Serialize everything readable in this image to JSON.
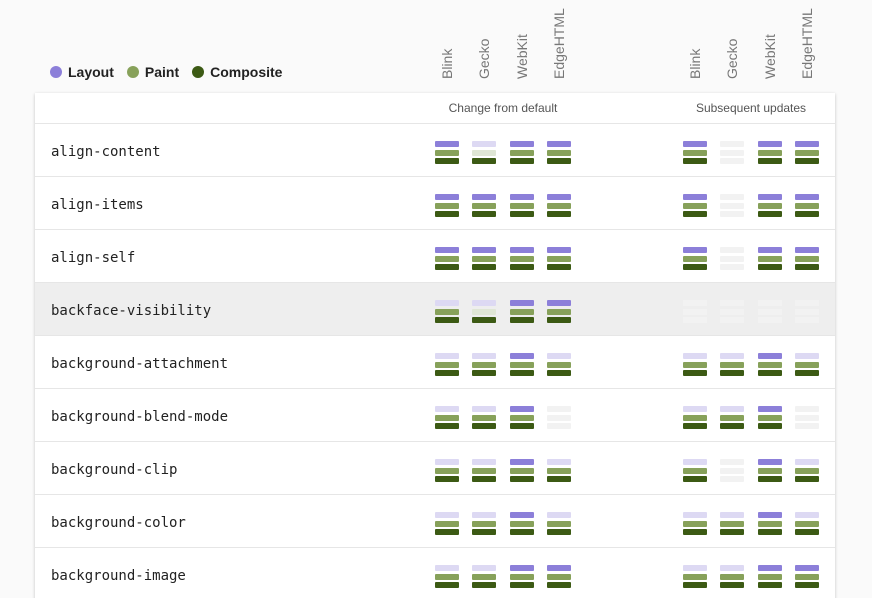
{
  "legend": {
    "layout_label": "Layout",
    "paint_label": "Paint",
    "composite_label": "Composite"
  },
  "browsers": [
    "Blink",
    "Gecko",
    "WebKit",
    "EdgeHTML"
  ],
  "groups": {
    "change_from_default": "Change from default",
    "subsequent_updates": "Subsequent updates"
  },
  "colors": {
    "layout_on": "#8c7fd9",
    "layout_off": "#ddd9f3",
    "paint_on": "#87a15a",
    "paint_off": "#dfe6d5",
    "composite_on": "#3c5a14",
    "composite_off": "#f0f0f0",
    "none": "#f2f2f2"
  },
  "rows": [
    {
      "name": "align-content",
      "highlighted": false,
      "default": [
        [
          1,
          1,
          1
        ],
        [
          0,
          0,
          1
        ],
        [
          1,
          1,
          1
        ],
        [
          1,
          1,
          1
        ]
      ],
      "updates": [
        [
          1,
          1,
          1
        ],
        [
          -1,
          -1,
          -1
        ],
        [
          1,
          1,
          1
        ],
        [
          1,
          1,
          1
        ]
      ]
    },
    {
      "name": "align-items",
      "highlighted": false,
      "default": [
        [
          1,
          1,
          1
        ],
        [
          1,
          1,
          1
        ],
        [
          1,
          1,
          1
        ],
        [
          1,
          1,
          1
        ]
      ],
      "updates": [
        [
          1,
          1,
          1
        ],
        [
          -1,
          -1,
          -1
        ],
        [
          1,
          1,
          1
        ],
        [
          1,
          1,
          1
        ]
      ]
    },
    {
      "name": "align-self",
      "highlighted": false,
      "default": [
        [
          1,
          1,
          1
        ],
        [
          1,
          1,
          1
        ],
        [
          1,
          1,
          1
        ],
        [
          1,
          1,
          1
        ]
      ],
      "updates": [
        [
          1,
          1,
          1
        ],
        [
          -1,
          -1,
          -1
        ],
        [
          1,
          1,
          1
        ],
        [
          1,
          1,
          1
        ]
      ]
    },
    {
      "name": "backface-visibility",
      "highlighted": true,
      "default": [
        [
          0,
          1,
          1
        ],
        [
          0,
          0,
          1
        ],
        [
          1,
          1,
          1
        ],
        [
          1,
          1,
          1
        ]
      ],
      "updates": [
        [
          -1,
          -1,
          -1
        ],
        [
          -1,
          -1,
          -1
        ],
        [
          -1,
          -1,
          -1
        ],
        [
          -1,
          -1,
          -1
        ]
      ]
    },
    {
      "name": "background-attachment",
      "highlighted": false,
      "default": [
        [
          0,
          1,
          1
        ],
        [
          0,
          1,
          1
        ],
        [
          1,
          1,
          1
        ],
        [
          0,
          1,
          1
        ]
      ],
      "updates": [
        [
          0,
          1,
          1
        ],
        [
          0,
          1,
          1
        ],
        [
          1,
          1,
          1
        ],
        [
          0,
          1,
          1
        ]
      ]
    },
    {
      "name": "background-blend-mode",
      "highlighted": false,
      "default": [
        [
          0,
          1,
          1
        ],
        [
          0,
          1,
          1
        ],
        [
          1,
          1,
          1
        ],
        [
          -1,
          -1,
          -1
        ]
      ],
      "updates": [
        [
          0,
          1,
          1
        ],
        [
          0,
          1,
          1
        ],
        [
          1,
          1,
          1
        ],
        [
          -1,
          -1,
          -1
        ]
      ]
    },
    {
      "name": "background-clip",
      "highlighted": false,
      "default": [
        [
          0,
          1,
          1
        ],
        [
          0,
          1,
          1
        ],
        [
          1,
          1,
          1
        ],
        [
          0,
          1,
          1
        ]
      ],
      "updates": [
        [
          0,
          1,
          1
        ],
        [
          -1,
          -1,
          -1
        ],
        [
          1,
          1,
          1
        ],
        [
          0,
          1,
          1
        ]
      ]
    },
    {
      "name": "background-color",
      "highlighted": false,
      "default": [
        [
          0,
          1,
          1
        ],
        [
          0,
          1,
          1
        ],
        [
          1,
          1,
          1
        ],
        [
          0,
          1,
          1
        ]
      ],
      "updates": [
        [
          0,
          1,
          1
        ],
        [
          0,
          1,
          1
        ],
        [
          1,
          1,
          1
        ],
        [
          0,
          1,
          1
        ]
      ]
    },
    {
      "name": "background-image",
      "highlighted": false,
      "default": [
        [
          0,
          1,
          1
        ],
        [
          0,
          1,
          1
        ],
        [
          1,
          1,
          1
        ],
        [
          1,
          1,
          1
        ]
      ],
      "updates": [
        [
          0,
          1,
          1
        ],
        [
          0,
          1,
          1
        ],
        [
          1,
          1,
          1
        ],
        [
          1,
          1,
          1
        ]
      ]
    }
  ]
}
